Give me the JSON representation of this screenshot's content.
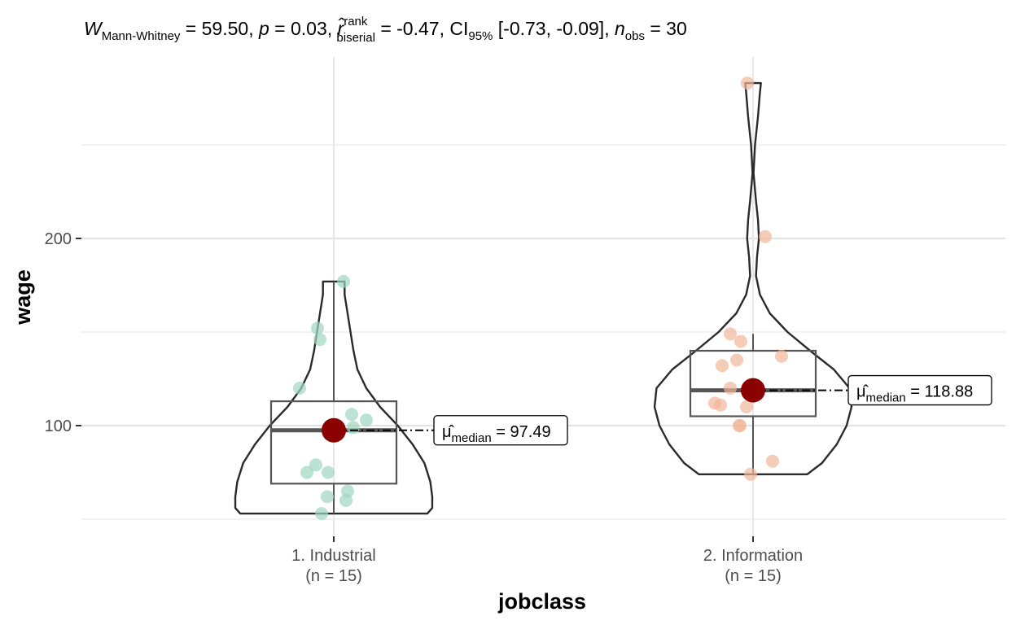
{
  "chart_data": {
    "type": "violin-box-jitter",
    "subtitle": {
      "stat_symbol": "W",
      "stat_sub": "Mann-Whitney",
      "stat_value": " = 59.50, ",
      "p_symbol": "p",
      "p_value": " = 0.03, ",
      "effect_symbol": "r̂",
      "effect_sup": "rank",
      "effect_sub": "biserial",
      "effect_value": " = -0.47, ",
      "ci_text": "CI",
      "ci_sub": "95%",
      "ci_value": " [-0.73, -0.09], ",
      "n_symbol": "n",
      "n_sub": "obs",
      "n_value": " = 30"
    },
    "xlabel": "jobclass",
    "ylabel": "wage",
    "ylim": [
      44,
      290
    ],
    "yticks": [
      100,
      200
    ],
    "grid": true,
    "groups": [
      {
        "name": "1. Industrial",
        "n_label": "(n = 15)",
        "color": "#9ed5bf",
        "points": [
          177,
          152,
          146,
          120,
          106,
          103,
          99,
          79,
          75,
          75,
          65,
          62,
          60,
          53,
          97
        ],
        "box": {
          "q1": 69,
          "median": 97.49,
          "q3": 113,
          "whisker_low": 53,
          "whisker_high": 177
        },
        "violin": {
          "max_width": 0.27,
          "profile": [
            [
              53,
              0.95
            ],
            [
              56,
              1.0
            ],
            [
              62,
              1.0
            ],
            [
              70,
              0.98
            ],
            [
              80,
              0.92
            ],
            [
              90,
              0.8
            ],
            [
              100,
              0.65
            ],
            [
              110,
              0.47
            ],
            [
              120,
              0.33
            ],
            [
              130,
              0.24
            ],
            [
              140,
              0.2
            ],
            [
              150,
              0.17
            ],
            [
              160,
              0.14
            ],
            [
              170,
              0.11
            ],
            [
              177,
              0.11
            ]
          ]
        },
        "median_label": "= 97.49"
      },
      {
        "name": "2. Information",
        "n_label": "(n = 15)",
        "color": "#f0b69a",
        "points": [
          283,
          201,
          149,
          145,
          137,
          135,
          132,
          120,
          112,
          111,
          110,
          100,
          100,
          81,
          74
        ],
        "box": {
          "q1": 105,
          "median": 118.88,
          "q3": 140,
          "whisker_low": 74,
          "whisker_high": 149
        },
        "violin": {
          "max_width": 0.27,
          "profile": [
            [
              74,
              0.55
            ],
            [
              80,
              0.7
            ],
            [
              90,
              0.85
            ],
            [
              100,
              0.95
            ],
            [
              110,
              1.0
            ],
            [
              120,
              0.98
            ],
            [
              130,
              0.82
            ],
            [
              140,
              0.58
            ],
            [
              150,
              0.35
            ],
            [
              160,
              0.17
            ],
            [
              170,
              0.07
            ],
            [
              180,
              0.03
            ],
            [
              190,
              0.04
            ],
            [
              200,
              0.06
            ],
            [
              210,
              0.05
            ],
            [
              220,
              0.03
            ],
            [
              235,
              0.005
            ],
            [
              250,
              0.02
            ],
            [
              265,
              0.05
            ],
            [
              278,
              0.07
            ],
            [
              283,
              0.08
            ]
          ]
        },
        "median_label": "= 118.88"
      }
    ],
    "median_label_prefix": "μ̂",
    "median_label_sub": "median",
    "median_point_color": "#8b0000"
  }
}
